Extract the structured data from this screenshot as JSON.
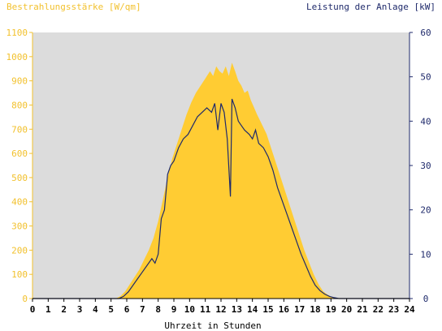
{
  "chart_data": {
    "type": "area",
    "ylabel_left": "Bestrahlungsstärke [W/qm]",
    "ylabel_right": "Leistung der Anlage [kW]",
    "xlabel": "Uhrzeit in Stunden",
    "xlim": [
      0,
      24
    ],
    "ylim_left": [
      0,
      1100
    ],
    "ylim_right": [
      0,
      60
    ],
    "x_ticks": [
      "0",
      "1",
      "2",
      "3",
      "4",
      "5",
      "6",
      "7",
      "8",
      "9",
      "10",
      "11",
      "12",
      "13",
      "14",
      "15",
      "16",
      "17",
      "18",
      "19",
      "20",
      "21",
      "22",
      "23",
      "24"
    ],
    "y_left_ticks": [
      "0",
      "100",
      "200",
      "300",
      "400",
      "500",
      "600",
      "700",
      "800",
      "900",
      "1000",
      "1100"
    ],
    "y_right_ticks": [
      "0",
      "10",
      "20",
      "30",
      "40",
      "50",
      "60"
    ],
    "grid": false,
    "colors": {
      "plot_background": "#dcdcdc",
      "irradiance_fill": "#ffcc33",
      "power_line": "#1f2a6b",
      "left_axis": "#f2c12e",
      "right_axis": "#1f2a6b"
    },
    "series": [
      {
        "axis": "left",
        "style": "area",
        "x": [
          0,
          5.3,
          5.6,
          5.9,
          6.2,
          6.5,
          6.8,
          7.1,
          7.4,
          7.7,
          8.0,
          8.3,
          8.6,
          8.9,
          9.2,
          9.5,
          9.8,
          10.1,
          10.4,
          10.7,
          11.0,
          11.3,
          11.5,
          11.7,
          11.9,
          12.1,
          12.3,
          12.5,
          12.7,
          12.9,
          13.1,
          13.3,
          13.5,
          13.7,
          13.9,
          14.1,
          14.3,
          14.6,
          14.9,
          15.2,
          15.5,
          15.8,
          16.1,
          16.4,
          16.7,
          17.0,
          17.3,
          17.6,
          17.9,
          18.2,
          18.5,
          18.8,
          19.1,
          19.4,
          19.7,
          24
        ],
        "y": [
          0,
          0,
          10,
          30,
          60,
          90,
          120,
          160,
          200,
          250,
          320,
          410,
          500,
          580,
          640,
          700,
          760,
          810,
          850,
          880,
          910,
          940,
          920,
          960,
          940,
          930,
          960,
          920,
          975,
          940,
          900,
          880,
          850,
          860,
          820,
          790,
          760,
          720,
          680,
          620,
          560,
          500,
          440,
          380,
          320,
          260,
          200,
          150,
          100,
          60,
          30,
          15,
          5,
          2,
          0,
          0
        ]
      },
      {
        "axis": "right",
        "style": "line",
        "x": [
          0,
          5.5,
          5.8,
          6.1,
          6.4,
          6.7,
          7.0,
          7.3,
          7.6,
          7.8,
          8.0,
          8.2,
          8.4,
          8.6,
          8.8,
          9.0,
          9.3,
          9.6,
          9.9,
          10.2,
          10.5,
          10.8,
          11.1,
          11.4,
          11.6,
          11.8,
          12.0,
          12.2,
          12.4,
          12.6,
          12.7,
          12.9,
          13.1,
          13.3,
          13.5,
          13.8,
          14.0,
          14.2,
          14.4,
          14.7,
          15.0,
          15.3,
          15.6,
          15.9,
          16.2,
          16.5,
          16.8,
          17.1,
          17.4,
          17.7,
          18.0,
          18.3,
          18.6,
          18.9,
          19.2,
          19.5,
          24
        ],
        "y": [
          0,
          0,
          0.5,
          1.5,
          3,
          4.5,
          6,
          7.5,
          9,
          8,
          10,
          18,
          20,
          28,
          30,
          31,
          34,
          36,
          37,
          39,
          41,
          42,
          43,
          42,
          44,
          38,
          44,
          42,
          36,
          23,
          45,
          43,
          40,
          39,
          38,
          37,
          36,
          38,
          35,
          34,
          32,
          29,
          25,
          22,
          19,
          16,
          13,
          10,
          7.5,
          5,
          3,
          1.8,
          1,
          0.5,
          0.2,
          0,
          0
        ]
      }
    ]
  }
}
